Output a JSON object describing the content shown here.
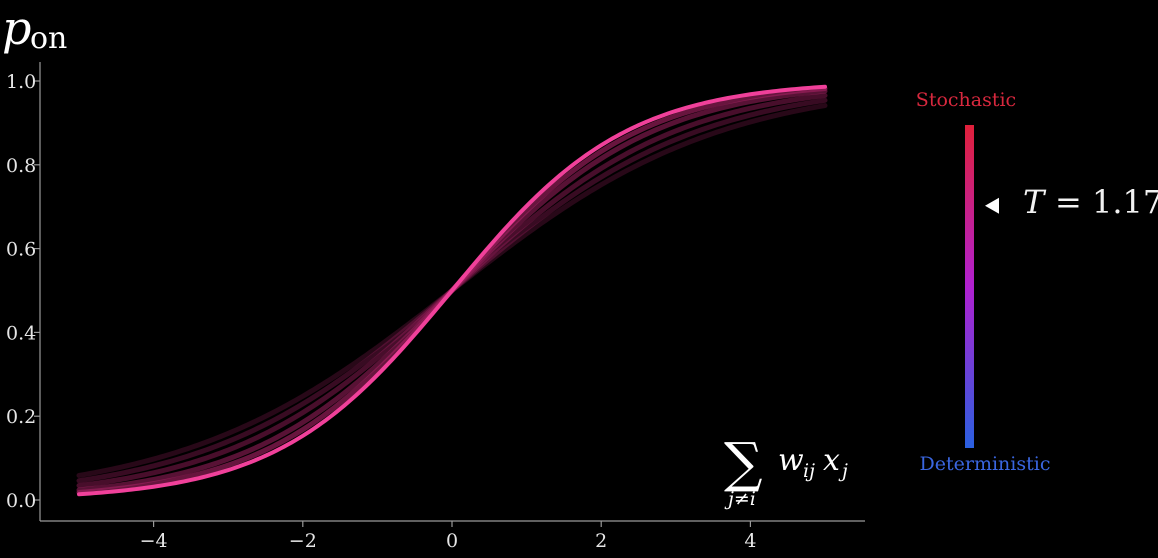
{
  "chart_data": {
    "type": "line",
    "ylabel_main": "p",
    "ylabel_sub": "on",
    "xlabel_sum": "∑",
    "xlabel_terms": "w",
    "xlabel_sub_ij": "ij",
    "xlabel_x": "x",
    "xlabel_sub_j": "j",
    "xlabel_under": "j≠i",
    "xlim": [
      -5.2,
      5.5
    ],
    "ylim": [
      -0.05,
      1.05
    ],
    "x_ticks": [
      -4,
      -2,
      0,
      2,
      4
    ],
    "x_tick_labels": [
      "−4",
      "−2",
      "0",
      "2",
      "4"
    ],
    "y_ticks": [
      0.0,
      0.2,
      0.4,
      0.6,
      0.8,
      1.0
    ],
    "y_tick_labels": [
      "0.0",
      "0.2",
      "0.4",
      "0.6",
      "0.8",
      "1.0"
    ],
    "x_domain": [
      -5,
      5
    ],
    "series_temperatures": [
      1.8,
      1.65,
      1.5,
      1.35,
      1.25,
      1.17
    ],
    "current_curve_color": "#f0409a",
    "trail_curve_color": "#a02060",
    "grid": false
  },
  "colorbar": {
    "top_label": "Stochastic",
    "bottom_label": "Deterministic",
    "top_color": "#e0203a",
    "mid_color": "#b020d0",
    "bottom_color": "#2a60e0",
    "top_label_color": "#d8283e",
    "bottom_label_color": "#3a66e0",
    "marker_value": 0.75
  },
  "temperature": {
    "symbol": "T",
    "equals": "=",
    "value": "1.17"
  }
}
